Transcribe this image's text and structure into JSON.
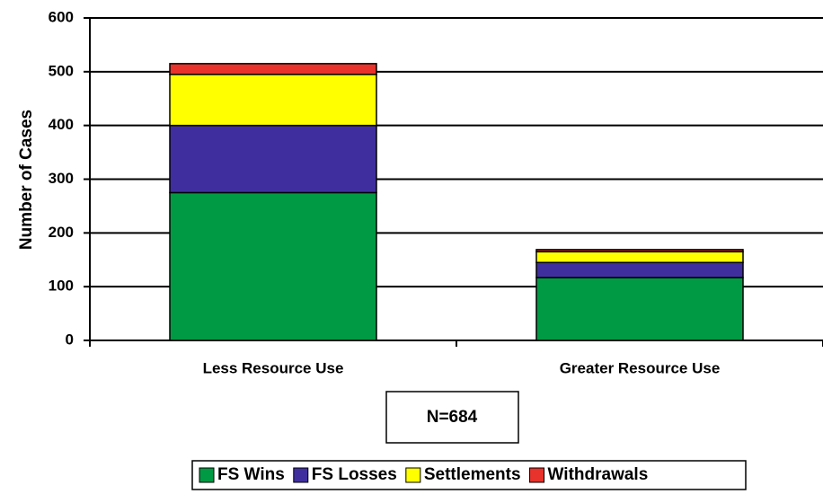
{
  "chart_data": {
    "type": "stacked-bar",
    "categories": [
      "Less Resource Use",
      "Greater Resource Use"
    ],
    "series": [
      {
        "name": "FS Wins",
        "color": "#009a44",
        "values": [
          275,
          117
        ]
      },
      {
        "name": "FS Losses",
        "color": "#3f2f9e",
        "values": [
          125,
          28
        ]
      },
      {
        "name": "Settlements",
        "color": "#ffff00",
        "values": [
          95,
          20
        ]
      },
      {
        "name": "Withdrawals",
        "color": "#e8322c",
        "values": [
          20,
          4
        ]
      }
    ],
    "y_label": "Number of Cases",
    "annotation": "N=684",
    "ylim": [
      0,
      600
    ],
    "yticks": [
      0,
      100,
      200,
      300,
      400,
      500,
      600
    ],
    "grid": true,
    "legend": "bottom"
  }
}
